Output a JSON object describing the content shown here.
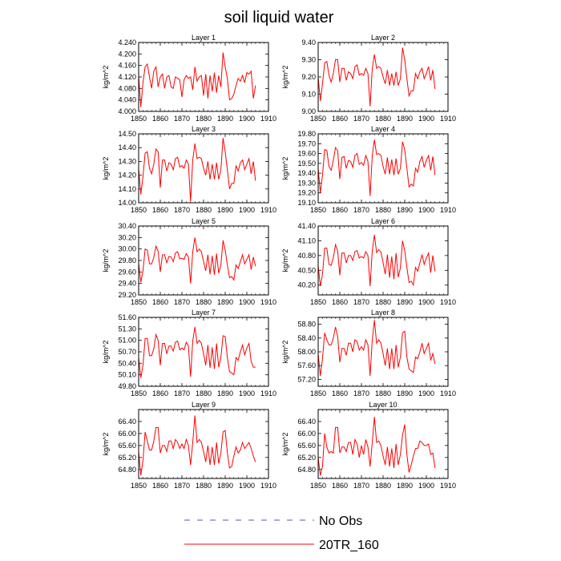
{
  "figure_title": "soil liquid water",
  "x_tick_labels": [
    "1850",
    "1860",
    "1870",
    "1880",
    "1890",
    "1900",
    "1910"
  ],
  "legend": [
    {
      "label": "No Obs",
      "color": "#5555aa",
      "dash": true
    },
    {
      "label": "20TR_160",
      "color": "#ff0000",
      "dash": false
    }
  ],
  "chart_data": [
    {
      "type": "line",
      "title": "Layer 1",
      "ylabel": "kg/m^2",
      "xlim": [
        1850,
        1910
      ],
      "ylim": [
        4.0,
        4.24
      ],
      "yticks": [
        "4.000",
        "4.040",
        "4.080",
        "4.120",
        "4.160",
        "4.200",
        "4.240"
      ],
      "color": "#ff0000",
      "x": [
        1850,
        1851,
        1852,
        1853,
        1854,
        1855,
        1856,
        1857,
        1858,
        1859,
        1860,
        1861,
        1862,
        1863,
        1864,
        1865,
        1866,
        1867,
        1868,
        1869,
        1870,
        1871,
        1872,
        1873,
        1874,
        1875,
        1876,
        1877,
        1878,
        1879,
        1880,
        1881,
        1882,
        1883,
        1884,
        1885,
        1886,
        1887,
        1888,
        1889,
        1890,
        1891,
        1892,
        1893,
        1894,
        1895,
        1896,
        1897,
        1898,
        1899,
        1900,
        1901,
        1902,
        1903,
        1904
      ],
      "y": [
        4.125,
        4.015,
        4.1,
        4.155,
        4.165,
        4.12,
        4.08,
        4.14,
        4.155,
        4.085,
        4.12,
        4.13,
        4.08,
        4.12,
        4.125,
        4.085,
        4.08,
        4.12,
        4.115,
        4.11,
        4.05,
        4.11,
        4.125,
        4.115,
        4.12,
        4.075,
        4.155,
        4.105,
        4.12,
        4.125,
        4.055,
        4.13,
        4.045,
        4.125,
        4.07,
        4.135,
        4.065,
        4.125,
        4.085,
        4.205,
        4.155,
        4.115,
        4.04,
        4.045,
        4.06,
        4.09,
        4.115,
        4.105,
        4.125,
        4.1,
        4.135,
        4.13,
        4.14,
        4.045,
        4.09
      ]
    },
    {
      "type": "line",
      "title": "Layer 2",
      "ylabel": "kg/m^2",
      "xlim": [
        1850,
        1910
      ],
      "ylim": [
        9.0,
        9.4
      ],
      "yticks": [
        "9.00",
        "9.10",
        "9.20",
        "9.30",
        "9.40"
      ],
      "color": "#ff0000",
      "x": [
        1850,
        1851,
        1852,
        1853,
        1854,
        1855,
        1856,
        1857,
        1858,
        1859,
        1860,
        1861,
        1862,
        1863,
        1864,
        1865,
        1866,
        1867,
        1868,
        1869,
        1870,
        1871,
        1872,
        1873,
        1874,
        1875,
        1876,
        1877,
        1878,
        1879,
        1880,
        1881,
        1882,
        1883,
        1884,
        1885,
        1886,
        1887,
        1888,
        1889,
        1890,
        1891,
        1892,
        1893,
        1894,
        1895,
        1896,
        1897,
        1898,
        1899,
        1900,
        1901,
        1902,
        1903,
        1904
      ],
      "y": [
        9.2,
        9.06,
        9.16,
        9.28,
        9.29,
        9.21,
        9.17,
        9.22,
        9.3,
        9.3,
        9.17,
        9.25,
        9.25,
        9.18,
        9.23,
        9.22,
        9.19,
        9.26,
        9.27,
        9.21,
        9.22,
        9.21,
        9.25,
        9.22,
        9.03,
        9.25,
        9.33,
        9.25,
        9.26,
        9.25,
        9.2,
        9.16,
        9.24,
        9.15,
        9.22,
        9.15,
        9.23,
        9.15,
        9.19,
        9.37,
        9.3,
        9.19,
        9.09,
        9.12,
        9.12,
        9.22,
        9.19,
        9.23,
        9.25,
        9.19,
        9.22,
        9.26,
        9.18,
        9.24,
        9.13
      ]
    },
    {
      "type": "line",
      "title": "Layer 3",
      "ylabel": "kg/m^2",
      "xlim": [
        1850,
        1910
      ],
      "ylim": [
        14.0,
        14.5
      ],
      "yticks": [
        "14.00",
        "14.10",
        "14.20",
        "14.30",
        "14.40",
        "14.50"
      ],
      "color": "#ff0000",
      "x": [
        1850,
        1851,
        1852,
        1853,
        1854,
        1855,
        1856,
        1857,
        1858,
        1859,
        1860,
        1861,
        1862,
        1863,
        1864,
        1865,
        1866,
        1867,
        1868,
        1869,
        1870,
        1871,
        1872,
        1873,
        1874,
        1875,
        1876,
        1877,
        1878,
        1879,
        1880,
        1881,
        1882,
        1883,
        1884,
        1885,
        1886,
        1887,
        1888,
        1889,
        1890,
        1891,
        1892,
        1893,
        1894,
        1895,
        1896,
        1897,
        1898,
        1899,
        1900,
        1901,
        1902,
        1903,
        1904
      ],
      "y": [
        14.25,
        14.06,
        14.19,
        14.36,
        14.37,
        14.25,
        14.21,
        14.28,
        14.39,
        14.37,
        14.11,
        14.31,
        14.31,
        14.23,
        14.29,
        14.28,
        14.24,
        14.32,
        14.33,
        14.26,
        14.27,
        14.25,
        14.31,
        14.28,
        14.01,
        14.31,
        14.43,
        14.32,
        14.33,
        14.32,
        14.25,
        14.2,
        14.3,
        14.17,
        14.28,
        14.17,
        14.29,
        14.17,
        14.24,
        14.47,
        14.37,
        14.24,
        14.1,
        14.14,
        14.14,
        14.27,
        14.23,
        14.29,
        14.31,
        14.24,
        14.28,
        14.32,
        14.21,
        14.3,
        14.16
      ]
    },
    {
      "type": "line",
      "title": "Layer 4",
      "ylabel": "kg/m^2",
      "xlim": [
        1850,
        1910
      ],
      "ylim": [
        19.1,
        19.8
      ],
      "yticks": [
        "19.10",
        "19.20",
        "19.30",
        "19.40",
        "19.50",
        "19.60",
        "19.70",
        "19.80"
      ],
      "color": "#ff0000",
      "x": [
        1850,
        1851,
        1852,
        1853,
        1854,
        1855,
        1856,
        1857,
        1858,
        1859,
        1860,
        1861,
        1862,
        1863,
        1864,
        1865,
        1866,
        1867,
        1868,
        1869,
        1870,
        1871,
        1872,
        1873,
        1874,
        1875,
        1876,
        1877,
        1878,
        1879,
        1880,
        1881,
        1882,
        1883,
        1884,
        1885,
        1886,
        1887,
        1888,
        1889,
        1890,
        1891,
        1892,
        1893,
        1894,
        1895,
        1896,
        1897,
        1898,
        1899,
        1900,
        1901,
        1902,
        1903,
        1904
      ],
      "y": [
        19.45,
        19.2,
        19.38,
        19.64,
        19.63,
        19.47,
        19.43,
        19.53,
        19.66,
        19.63,
        19.34,
        19.56,
        19.57,
        19.45,
        19.53,
        19.52,
        19.46,
        19.58,
        19.6,
        19.49,
        19.51,
        19.48,
        19.58,
        19.52,
        19.17,
        19.58,
        19.74,
        19.59,
        19.6,
        19.58,
        19.47,
        19.39,
        19.56,
        19.39,
        19.54,
        19.38,
        19.55,
        19.39,
        19.45,
        19.72,
        19.64,
        19.45,
        19.26,
        19.29,
        19.27,
        19.45,
        19.41,
        19.52,
        19.57,
        19.46,
        19.53,
        19.58,
        19.43,
        19.57,
        19.38
      ]
    },
    {
      "type": "line",
      "title": "Layer 5",
      "ylabel": "kg/m^2",
      "xlim": [
        1850,
        1910
      ],
      "ylim": [
        29.2,
        30.4
      ],
      "yticks": [
        "29.20",
        "29.40",
        "29.60",
        "29.80",
        "30.00",
        "30.20",
        "30.40"
      ],
      "color": "#ff0000",
      "x": [
        1850,
        1851,
        1852,
        1853,
        1854,
        1855,
        1856,
        1857,
        1858,
        1859,
        1860,
        1861,
        1862,
        1863,
        1864,
        1865,
        1866,
        1867,
        1868,
        1869,
        1870,
        1871,
        1872,
        1873,
        1874,
        1875,
        1876,
        1877,
        1878,
        1879,
        1880,
        1881,
        1882,
        1883,
        1884,
        1885,
        1886,
        1887,
        1888,
        1889,
        1890,
        1891,
        1892,
        1893,
        1894,
        1895,
        1896,
        1897,
        1898,
        1899,
        1900,
        1901,
        1902,
        1903,
        1904
      ],
      "y": [
        29.75,
        29.42,
        29.62,
        30.0,
        29.98,
        29.74,
        29.74,
        29.85,
        30.05,
        29.96,
        29.6,
        29.9,
        29.9,
        29.76,
        29.87,
        29.86,
        29.78,
        29.93,
        29.95,
        29.83,
        29.84,
        29.82,
        29.92,
        29.86,
        29.4,
        29.95,
        30.2,
        29.95,
        30.0,
        29.95,
        29.78,
        29.62,
        29.9,
        29.56,
        29.88,
        29.55,
        29.92,
        29.58,
        29.72,
        30.15,
        29.98,
        29.72,
        29.5,
        29.52,
        29.46,
        29.72,
        29.66,
        29.78,
        29.9,
        29.74,
        29.82,
        29.9,
        29.64,
        29.86,
        29.7
      ]
    },
    {
      "type": "line",
      "title": "Layer 6",
      "ylabel": "kg/m^2",
      "xlim": [
        1850,
        1910
      ],
      "ylim": [
        40.0,
        41.4
      ],
      "yticks": [
        "40.20",
        "40.50",
        "40.80",
        "41.10",
        "41.40"
      ],
      "color": "#ff0000",
      "x": [
        1850,
        1851,
        1852,
        1853,
        1854,
        1855,
        1856,
        1857,
        1858,
        1859,
        1860,
        1861,
        1862,
        1863,
        1864,
        1865,
        1866,
        1867,
        1868,
        1869,
        1870,
        1871,
        1872,
        1873,
        1874,
        1875,
        1876,
        1877,
        1878,
        1879,
        1880,
        1881,
        1882,
        1883,
        1884,
        1885,
        1886,
        1887,
        1888,
        1889,
        1890,
        1891,
        1892,
        1893,
        1894,
        1895,
        1896,
        1897,
        1898,
        1899,
        1900,
        1901,
        1902,
        1903,
        1904
      ],
      "y": [
        40.6,
        40.18,
        40.42,
        40.95,
        40.95,
        40.62,
        40.6,
        40.75,
        41.02,
        40.9,
        40.4,
        40.85,
        40.85,
        40.65,
        40.8,
        40.8,
        40.7,
        40.88,
        40.9,
        40.75,
        40.78,
        40.75,
        40.88,
        40.8,
        40.18,
        40.9,
        41.22,
        40.86,
        40.92,
        40.87,
        40.66,
        40.42,
        40.82,
        40.35,
        40.78,
        40.32,
        40.85,
        40.36,
        40.55,
        41.1,
        40.9,
        40.56,
        40.25,
        40.28,
        40.2,
        40.56,
        40.48,
        40.65,
        40.82,
        40.62,
        40.75,
        40.85,
        40.45,
        40.8,
        40.48
      ]
    },
    {
      "type": "line",
      "title": "Layer 7",
      "ylabel": "kg/m^2",
      "xlim": [
        1850,
        1910
      ],
      "ylim": [
        49.8,
        51.6
      ],
      "yticks": [
        "49.80",
        "50.10",
        "50.40",
        "50.70",
        "51.00",
        "51.30",
        "51.60"
      ],
      "color": "#ff0000",
      "x": [
        1850,
        1851,
        1852,
        1853,
        1854,
        1855,
        1856,
        1857,
        1858,
        1859,
        1860,
        1861,
        1862,
        1863,
        1864,
        1865,
        1866,
        1867,
        1868,
        1869,
        1870,
        1871,
        1872,
        1873,
        1874,
        1875,
        1876,
        1877,
        1878,
        1879,
        1880,
        1881,
        1882,
        1883,
        1884,
        1885,
        1886,
        1887,
        1888,
        1889,
        1890,
        1891,
        1892,
        1893,
        1894,
        1895,
        1896,
        1897,
        1898,
        1899,
        1900,
        1901,
        1902,
        1903,
        1904
      ],
      "y": [
        50.55,
        50.02,
        50.35,
        51.05,
        51.05,
        50.6,
        50.6,
        50.78,
        51.15,
        51.0,
        50.35,
        50.92,
        50.92,
        50.65,
        50.85,
        50.85,
        50.72,
        50.95,
        50.98,
        50.75,
        50.8,
        50.75,
        50.95,
        50.85,
        50.05,
        50.98,
        51.35,
        50.92,
        51.0,
        50.92,
        50.65,
        50.35,
        50.88,
        50.28,
        50.82,
        50.25,
        50.92,
        50.3,
        50.55,
        51.12,
        51.1,
        50.55,
        50.18,
        50.15,
        50.1,
        50.55,
        50.48,
        50.7,
        50.88,
        50.62,
        50.8,
        50.92,
        50.45,
        50.3,
        50.3
      ]
    },
    {
      "type": "line",
      "title": "Layer 8",
      "ylabel": "kg/m^2",
      "xlim": [
        1850,
        1910
      ],
      "ylim": [
        57.0,
        59.0
      ],
      "yticks": [
        "57.20",
        "57.60",
        "58.00",
        "58.40",
        "58.80"
      ],
      "color": "#ff0000",
      "x": [
        1850,
        1851,
        1852,
        1853,
        1854,
        1855,
        1856,
        1857,
        1858,
        1859,
        1860,
        1861,
        1862,
        1863,
        1864,
        1865,
        1866,
        1867,
        1868,
        1869,
        1870,
        1871,
        1872,
        1873,
        1874,
        1875,
        1876,
        1877,
        1878,
        1879,
        1880,
        1881,
        1882,
        1883,
        1884,
        1885,
        1886,
        1887,
        1888,
        1889,
        1890,
        1891,
        1892,
        1893,
        1894,
        1895,
        1896,
        1897,
        1898,
        1899,
        1900,
        1901,
        1902,
        1903,
        1904
      ],
      "y": [
        57.95,
        57.3,
        57.8,
        58.55,
        58.35,
        58.2,
        58.2,
        58.4,
        58.72,
        58.45,
        57.7,
        58.1,
        58.1,
        57.9,
        58.25,
        58.25,
        58.0,
        58.35,
        58.3,
        58.05,
        58.15,
        58.05,
        58.35,
        58.2,
        57.3,
        58.35,
        58.92,
        58.25,
        58.35,
        58.25,
        57.95,
        57.6,
        58.1,
        57.5,
        58.1,
        57.5,
        58.2,
        57.55,
        57.85,
        58.55,
        58.6,
        57.85,
        57.5,
        57.45,
        57.4,
        57.85,
        57.8,
        58.0,
        58.25,
        57.95,
        58.1,
        58.25,
        57.75,
        57.95,
        57.65
      ]
    },
    {
      "type": "line",
      "title": "Layer 9",
      "ylabel": "kg/m^2",
      "xlim": [
        1850,
        1910
      ],
      "ylim": [
        64.5,
        66.8
      ],
      "yticks": [
        "64.80",
        "65.20",
        "65.60",
        "66.00",
        "66.40"
      ],
      "color": "#ff0000",
      "x": [
        1850,
        1851,
        1852,
        1853,
        1854,
        1855,
        1856,
        1857,
        1858,
        1859,
        1860,
        1861,
        1862,
        1863,
        1864,
        1865,
        1866,
        1867,
        1868,
        1869,
        1870,
        1871,
        1872,
        1873,
        1874,
        1875,
        1876,
        1877,
        1878,
        1879,
        1880,
        1881,
        1882,
        1883,
        1884,
        1885,
        1886,
        1887,
        1888,
        1889,
        1890,
        1891,
        1892,
        1893,
        1894,
        1895,
        1896,
        1897,
        1898,
        1899,
        1900,
        1901,
        1902,
        1903,
        1904
      ],
      "y": [
        65.4,
        64.6,
        65.1,
        66.05,
        65.75,
        65.45,
        65.45,
        65.75,
        66.2,
        66.2,
        65.35,
        65.6,
        65.6,
        65.4,
        65.75,
        65.75,
        65.5,
        65.8,
        65.7,
        65.5,
        65.65,
        65.5,
        65.8,
        65.6,
        64.95,
        65.7,
        66.6,
        65.7,
        65.8,
        65.7,
        65.4,
        65.05,
        65.6,
        64.95,
        65.55,
        64.95,
        65.7,
        65.0,
        65.35,
        66.05,
        66.1,
        65.35,
        64.85,
        64.9,
        65.25,
        65.55,
        65.35,
        65.45,
        65.7,
        65.5,
        65.6,
        65.7,
        65.5,
        65.25,
        65.05
      ]
    },
    {
      "type": "line",
      "title": "Layer 10",
      "ylabel": "kg/m^2",
      "xlim": [
        1850,
        1910
      ],
      "ylim": [
        64.5,
        66.8
      ],
      "yticks": [
        "64.80",
        "65.20",
        "65.60",
        "66.00",
        "66.40"
      ],
      "color": "#ff0000",
      "x": [
        1850,
        1851,
        1852,
        1853,
        1854,
        1855,
        1856,
        1857,
        1858,
        1859,
        1860,
        1861,
        1862,
        1863,
        1864,
        1865,
        1866,
        1867,
        1868,
        1869,
        1870,
        1871,
        1872,
        1873,
        1874,
        1875,
        1876,
        1877,
        1878,
        1879,
        1880,
        1881,
        1882,
        1883,
        1884,
        1885,
        1886,
        1887,
        1888,
        1889,
        1890,
        1891,
        1892,
        1893,
        1894,
        1895,
        1896,
        1897,
        1898,
        1899,
        1900,
        1901,
        1902,
        1903,
        1904
      ],
      "y": [
        65.2,
        64.6,
        64.9,
        66.0,
        65.55,
        65.35,
        65.4,
        65.35,
        66.2,
        66.2,
        65.35,
        65.55,
        65.55,
        65.4,
        65.7,
        65.7,
        65.3,
        65.8,
        65.65,
        65.2,
        65.6,
        65.3,
        65.8,
        65.55,
        64.9,
        65.7,
        66.55,
        65.7,
        65.75,
        65.6,
        65.25,
        64.95,
        65.55,
        64.9,
        65.5,
        64.85,
        65.65,
        64.95,
        65.3,
        65.95,
        66.3,
        65.3,
        64.7,
        64.95,
        65.25,
        65.5,
        65.5,
        65.75,
        65.7,
        65.6,
        65.6,
        65.65,
        65.3,
        65.35,
        64.85
      ]
    }
  ]
}
